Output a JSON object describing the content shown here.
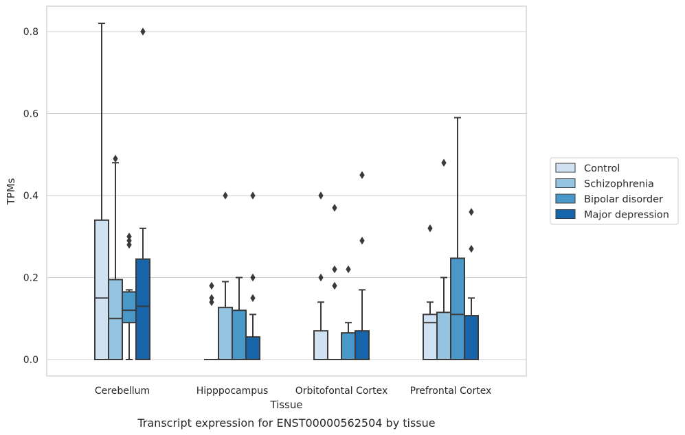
{
  "chart_data": {
    "type": "boxplot",
    "xlabel": "Tissue",
    "ylabel": "TPMs",
    "caption": "Transcript expression for ENST00000562504 by tissue",
    "ylim": [
      -0.04,
      0.86
    ],
    "yticks": [
      0.0,
      0.2,
      0.4,
      0.6,
      0.8
    ],
    "ytick_labels": [
      "0.0",
      "0.2",
      "0.4",
      "0.6",
      "0.8"
    ],
    "grid": "horizontal",
    "legend_position": "right",
    "categories": [
      "Cerebellum",
      "Hipppocampus",
      "Orbitofontal Cortex",
      "Prefrontal Cortex"
    ],
    "series": [
      {
        "name": "Control",
        "color": "#d0e1f2",
        "boxes": [
          {
            "q1": 0.0,
            "median": 0.15,
            "q3": 0.34,
            "whislo": 0.0,
            "whishi": 0.82,
            "fliers": []
          },
          {
            "q1": 0.0,
            "median": 0.0,
            "q3": 0.0,
            "whislo": 0.0,
            "whishi": 0.0,
            "fliers": [
              0.14,
              0.15,
              0.18
            ]
          },
          {
            "q1": 0.0,
            "median": 0.0,
            "q3": 0.07,
            "whislo": 0.0,
            "whishi": 0.14,
            "fliers": [
              0.2,
              0.4
            ]
          },
          {
            "q1": 0.0,
            "median": 0.09,
            "q3": 0.11,
            "whislo": 0.0,
            "whishi": 0.14,
            "fliers": [
              0.32
            ]
          }
        ]
      },
      {
        "name": "Schizophrenia",
        "color": "#94c4df",
        "boxes": [
          {
            "q1": 0.0,
            "median": 0.1,
            "q3": 0.195,
            "whislo": 0.0,
            "whishi": 0.48,
            "fliers": [
              0.49
            ]
          },
          {
            "q1": 0.0,
            "median": 0.0,
            "q3": 0.127,
            "whislo": 0.0,
            "whishi": 0.19,
            "fliers": [
              0.4
            ]
          },
          {
            "q1": 0.0,
            "median": 0.0,
            "q3": 0.0,
            "whislo": 0.0,
            "whishi": 0.0,
            "fliers": [
              0.18,
              0.22,
              0.37
            ]
          },
          {
            "q1": 0.0,
            "median": 0.0,
            "q3": 0.115,
            "whislo": 0.0,
            "whishi": 0.2,
            "fliers": [
              0.48
            ]
          }
        ]
      },
      {
        "name": "Bipolar disorder",
        "color": "#4a98c9",
        "boxes": [
          {
            "q1": 0.09,
            "median": 0.12,
            "q3": 0.165,
            "whislo": 0.0,
            "whishi": 0.17,
            "fliers": [
              0.28,
              0.29,
              0.3
            ]
          },
          {
            "q1": 0.0,
            "median": 0.0,
            "q3": 0.12,
            "whislo": 0.0,
            "whishi": 0.2,
            "fliers": []
          },
          {
            "q1": 0.0,
            "median": 0.0,
            "q3": 0.065,
            "whislo": 0.0,
            "whishi": 0.09,
            "fliers": [
              0.22
            ]
          },
          {
            "q1": 0.0,
            "median": 0.11,
            "q3": 0.247,
            "whislo": 0.0,
            "whishi": 0.59,
            "fliers": []
          }
        ]
      },
      {
        "name": "Major depression",
        "color": "#1764ab",
        "boxes": [
          {
            "q1": 0.0,
            "median": 0.13,
            "q3": 0.245,
            "whislo": 0.0,
            "whishi": 0.32,
            "fliers": [
              0.8
            ]
          },
          {
            "q1": 0.0,
            "median": 0.0,
            "q3": 0.055,
            "whislo": 0.0,
            "whishi": 0.11,
            "fliers": [
              0.15,
              0.2,
              0.4
            ]
          },
          {
            "q1": 0.0,
            "median": 0.0,
            "q3": 0.07,
            "whislo": 0.0,
            "whishi": 0.17,
            "fliers": [
              0.29,
              0.45
            ]
          },
          {
            "q1": 0.0,
            "median": 0.0,
            "q3": 0.107,
            "whislo": 0.0,
            "whishi": 0.15,
            "fliers": [
              0.27,
              0.36
            ]
          }
        ]
      }
    ]
  }
}
